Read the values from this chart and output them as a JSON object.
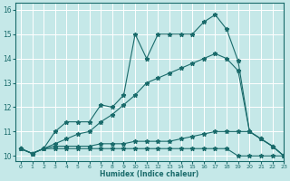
{
  "xlabel": "Humidex (Indice chaleur)",
  "bg_color": "#c5e8e8",
  "line_color": "#1a6b6b",
  "grid_color": "#ffffff",
  "xlim": [
    -0.5,
    23
  ],
  "ylim": [
    9.8,
    16.3
  ],
  "xticks": [
    0,
    1,
    2,
    3,
    4,
    5,
    6,
    7,
    8,
    9,
    10,
    11,
    12,
    13,
    14,
    15,
    16,
    17,
    18,
    19,
    20,
    21,
    22,
    23
  ],
  "yticks": [
    10,
    11,
    12,
    13,
    14,
    15,
    16
  ],
  "series": {
    "top_x": [
      0,
      1,
      2,
      3,
      4,
      5,
      6,
      7,
      8,
      9,
      10,
      11,
      12,
      13,
      14,
      15,
      16,
      17,
      18,
      19,
      20,
      21,
      22,
      23
    ],
    "top_y": [
      10.3,
      10.1,
      10.3,
      11.0,
      11.4,
      11.4,
      11.4,
      12.1,
      12.0,
      12.5,
      15.0,
      14.0,
      15.0,
      15.0,
      15.0,
      15.0,
      15.5,
      15.8,
      15.2,
      13.9,
      11.0,
      10.7,
      10.4,
      10.0
    ],
    "diag_x": [
      0,
      1,
      2,
      3,
      4,
      5,
      6,
      7,
      8,
      9,
      10,
      11,
      12,
      13,
      14,
      15,
      16,
      17,
      18,
      19,
      20,
      21,
      22,
      23
    ],
    "diag_y": [
      10.3,
      10.1,
      10.3,
      10.5,
      10.7,
      10.9,
      11.0,
      11.4,
      11.7,
      12.1,
      12.5,
      13.0,
      13.2,
      13.4,
      13.6,
      13.8,
      14.0,
      14.2,
      14.0,
      13.5,
      11.0,
      10.7,
      10.4,
      10.0
    ],
    "mid_x": [
      0,
      1,
      2,
      3,
      4,
      5,
      6,
      7,
      8,
      9,
      10,
      11,
      12,
      13,
      14,
      15,
      16,
      17,
      18,
      19,
      20,
      21,
      22,
      23
    ],
    "mid_y": [
      10.3,
      10.1,
      10.3,
      10.4,
      10.4,
      10.4,
      10.4,
      10.5,
      10.5,
      10.5,
      10.6,
      10.6,
      10.6,
      10.6,
      10.7,
      10.8,
      10.9,
      11.0,
      11.0,
      11.0,
      11.0,
      10.7,
      10.4,
      10.0
    ],
    "bot_x": [
      0,
      1,
      2,
      3,
      4,
      5,
      6,
      7,
      8,
      9,
      10,
      11,
      12,
      13,
      14,
      15,
      16,
      17,
      18,
      19,
      20,
      21,
      22,
      23
    ],
    "bot_y": [
      10.3,
      10.1,
      10.3,
      10.3,
      10.3,
      10.3,
      10.3,
      10.3,
      10.3,
      10.3,
      10.3,
      10.3,
      10.3,
      10.3,
      10.3,
      10.3,
      10.3,
      10.3,
      10.3,
      10.0,
      10.0,
      10.0,
      10.0,
      10.0
    ]
  }
}
